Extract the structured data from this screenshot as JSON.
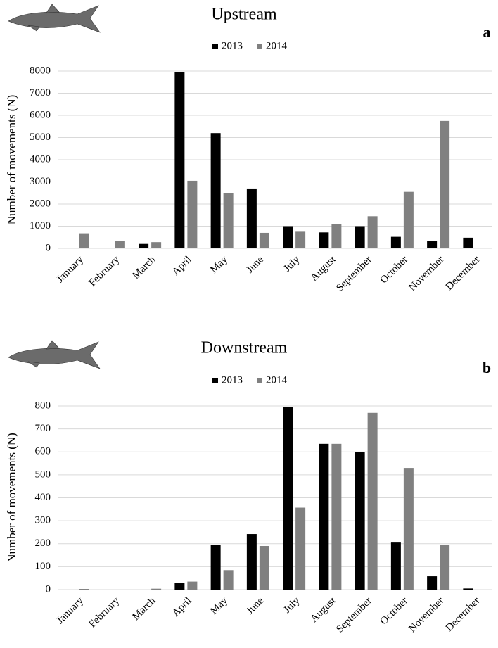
{
  "chart_data": [
    {
      "type": "bar",
      "title": "Upstream",
      "panel_label": "a",
      "y_label": "Number of movements (N)",
      "categories": [
        "January",
        "February",
        "March",
        "April",
        "May",
        "June",
        "July",
        "August",
        "September",
        "October",
        "November",
        "December"
      ],
      "series": [
        {
          "name": "2013",
          "color": "#000000",
          "values": [
            30,
            0,
            200,
            7950,
            5200,
            2700,
            1000,
            720,
            1000,
            520,
            330,
            480
          ]
        },
        {
          "name": "2014",
          "color": "#808080",
          "values": [
            680,
            320,
            280,
            3050,
            2480,
            700,
            750,
            1080,
            1450,
            2550,
            5750,
            20
          ]
        }
      ],
      "ylim": [
        0,
        8000
      ],
      "yticks": [
        0,
        1000,
        2000,
        3000,
        4000,
        5000,
        6000,
        7000,
        8000
      ],
      "grid": true,
      "legend": "top"
    },
    {
      "type": "bar",
      "title": "Downstream",
      "panel_label": "b",
      "y_label": "Number of movements (N)",
      "categories": [
        "January",
        "February",
        "March",
        "April",
        "May",
        "June",
        "July",
        "August",
        "September",
        "October",
        "November",
        "December"
      ],
      "series": [
        {
          "name": "2013",
          "color": "#000000",
          "values": [
            0,
            0,
            0,
            30,
            195,
            242,
            795,
            635,
            600,
            205,
            58,
            5
          ]
        },
        {
          "name": "2014",
          "color": "#808080",
          "values": [
            3,
            0,
            4,
            35,
            85,
            190,
            357,
            635,
            770,
            530,
            195,
            0
          ]
        }
      ],
      "ylim": [
        0,
        800
      ],
      "yticks": [
        0,
        100,
        200,
        300,
        400,
        500,
        600,
        700,
        800
      ],
      "grid": true,
      "legend": "top"
    }
  ]
}
